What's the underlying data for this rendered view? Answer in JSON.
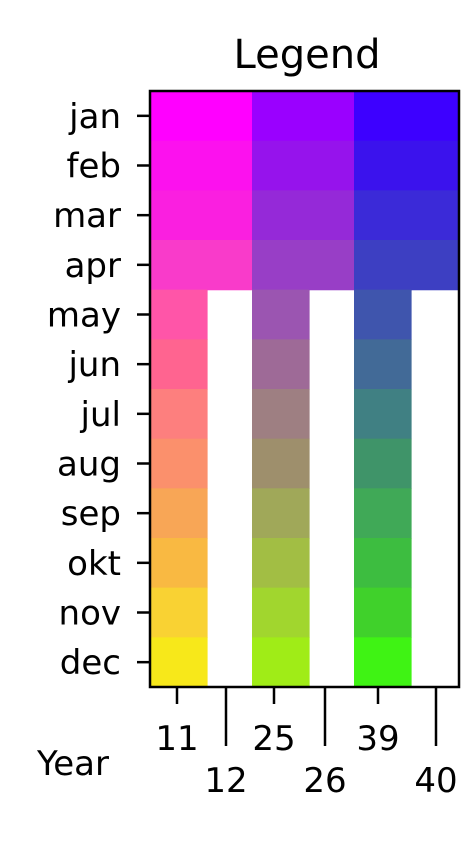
{
  "chart_data": {
    "type": "heatmap",
    "title": "Legend",
    "xlabel": "Year",
    "ylabel": "",
    "row_labels": [
      "jan",
      "feb",
      "mar",
      "apr",
      "may",
      "jun",
      "jul",
      "aug",
      "sep",
      "okt",
      "nov",
      "dec"
    ],
    "columns": [
      {
        "label": "11",
        "kind": "full",
        "tick_row": "upper"
      },
      {
        "label": "12",
        "kind": "partial",
        "tick_row": "lower"
      },
      {
        "label": "25",
        "kind": "full",
        "tick_row": "upper"
      },
      {
        "label": "26",
        "kind": "partial",
        "tick_row": "lower"
      },
      {
        "label": "39",
        "kind": "full",
        "tick_row": "upper"
      },
      {
        "label": "40",
        "kind": "partial",
        "tick_row": "lower"
      }
    ],
    "partial_month_count": 4,
    "colors": {
      "year_11_12": [
        "#ff00ff",
        "#fc11ee",
        "#fa1fe0",
        "#f93bca",
        "#ff55a8",
        "#ff6490",
        "#fd7f7e",
        "#fb906c",
        "#f8a656",
        "#f9b942",
        "#f9d233",
        "#f7e81a"
      ],
      "year_25_26": [
        "#9a00ff",
        "#9613ec",
        "#9529d8",
        "#983ec6",
        "#9b55b1",
        "#9e6a97",
        "#9e7f82",
        "#9e8f6c",
        "#a0a859",
        "#a2be44",
        "#a1d62e",
        "#a0ec17"
      ],
      "year_39_40": [
        "#3d00ff",
        "#3b12ed",
        "#3b2ad8",
        "#3d3fc2",
        "#3f55ad",
        "#426a97",
        "#408083",
        "#3f9469",
        "#40a957",
        "#3dbd40",
        "#40d12b",
        "#3ff314"
      ]
    }
  }
}
